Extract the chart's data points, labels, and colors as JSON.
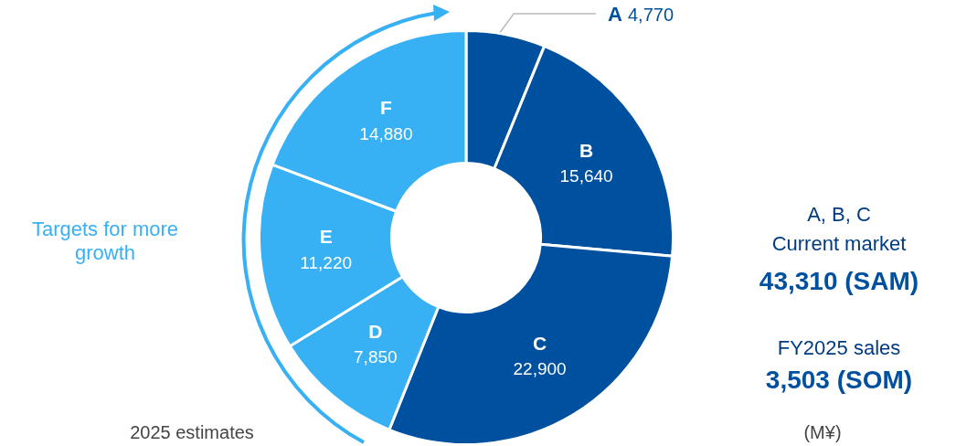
{
  "chart_data": {
    "type": "donut",
    "categories": [
      "A",
      "B",
      "C",
      "D",
      "E",
      "F"
    ],
    "values": [
      4770,
      15640,
      22900,
      7850,
      11220,
      14880
    ],
    "colors": [
      "#0050a0",
      "#0050a0",
      "#0050a0",
      "#38b0f4",
      "#38b0f4",
      "#38b0f4"
    ],
    "value_labels": [
      "4,770",
      "15,640",
      "22,900",
      "7,850",
      "11,220",
      "14,880"
    ],
    "legend": false,
    "annotations": [
      "Targets for more growth",
      "A, B, C",
      "Current market",
      "43,310 (SAM)",
      "FY2025 sales",
      "3,503 (SOM)",
      "2025 estimates",
      "(M¥)"
    ]
  }
}
